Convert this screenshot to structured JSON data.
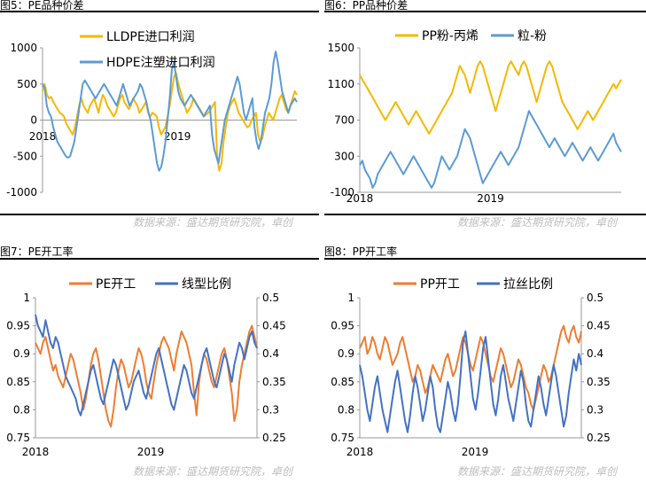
{
  "source_label": "数据来源：盛达期货研究院，卓创",
  "colors": {
    "gold": "#F5B800",
    "blue": "#5B9BD5",
    "orange": "#ED7D31",
    "navy": "#4472C4"
  },
  "chart_data": [
    {
      "id": "fig5",
      "type": "line",
      "title": "图5：PE品种价差",
      "x_ticks": [
        "2018",
        "2019"
      ],
      "ylim": [
        -1000,
        1000
      ],
      "y_ticks": [
        "1000",
        "500",
        "0",
        "-500",
        "-1000"
      ],
      "legend_position": "top",
      "series": [
        {
          "name": "LLDPE进口利润",
          "color": "#F5B800",
          "values": [
            400,
            500,
            350,
            300,
            320,
            250,
            200,
            150,
            100,
            80,
            50,
            -50,
            -100,
            -150,
            -200,
            -100,
            50,
            200,
            300,
            200,
            150,
            100,
            200,
            250,
            300,
            200,
            100,
            250,
            350,
            300,
            200,
            150,
            100,
            50,
            100,
            200,
            300,
            350,
            250,
            200,
            150,
            200,
            300,
            250,
            200,
            100,
            150,
            200,
            250,
            100,
            50,
            100,
            80,
            50,
            -100,
            -200,
            -150,
            -100,
            50,
            200,
            400,
            600,
            650,
            500,
            400,
            300,
            200,
            100,
            150,
            200,
            300,
            250,
            200,
            150,
            100,
            50,
            80,
            100,
            150,
            200,
            250,
            -500,
            -700,
            -600,
            -300,
            -100,
            100,
            200,
            250,
            300,
            200,
            100,
            50,
            0,
            -50,
            -100,
            -80,
            0,
            50,
            100,
            -200,
            -300,
            -250,
            -100,
            0,
            100,
            50,
            0,
            100,
            200,
            300,
            350,
            250,
            150,
            100,
            200,
            300,
            400,
            350
          ]
        },
        {
          "name": "HDPE注塑进口利润",
          "color": "#5B9BD5",
          "values": [
            500,
            450,
            200,
            100,
            50,
            -100,
            -200,
            -300,
            -350,
            -400,
            -450,
            -500,
            -520,
            -500,
            -400,
            -300,
            -100,
            100,
            300,
            500,
            550,
            500,
            450,
            400,
            350,
            300,
            350,
            400,
            450,
            500,
            450,
            400,
            350,
            300,
            250,
            200,
            300,
            400,
            500,
            400,
            300,
            200,
            250,
            300,
            350,
            400,
            500,
            450,
            350,
            250,
            100,
            0,
            -200,
            -400,
            -600,
            -700,
            -650,
            -500,
            -300,
            0,
            300,
            700,
            800,
            600,
            400,
            300,
            250,
            200,
            250,
            300,
            350,
            300,
            250,
            200,
            150,
            100,
            50,
            100,
            150,
            200,
            -200,
            -400,
            -500,
            -600,
            -400,
            -200,
            0,
            100,
            200,
            300,
            400,
            500,
            600,
            500,
            300,
            100,
            0,
            100,
            200,
            300,
            -100,
            -300,
            -400,
            -300,
            -100,
            100,
            200,
            300,
            500,
            800,
            950,
            800,
            600,
            400,
            300,
            200,
            100,
            200,
            250,
            300,
            250
          ]
        }
      ]
    },
    {
      "id": "fig6",
      "type": "line",
      "title": "图6：PP品种价差",
      "x_ticks": [
        "2018",
        "2019"
      ],
      "ylim": [
        -100,
        1500
      ],
      "y_ticks": [
        "1500",
        "1100",
        "700",
        "300",
        "-100"
      ],
      "legend_position": "top",
      "series": [
        {
          "name": "PP粉-丙烯",
          "color": "#F5B800",
          "values": [
            1200,
            1150,
            1100,
            1050,
            1000,
            950,
            900,
            850,
            800,
            750,
            700,
            750,
            800,
            850,
            900,
            850,
            800,
            750,
            700,
            650,
            700,
            750,
            800,
            750,
            700,
            650,
            600,
            550,
            600,
            650,
            700,
            750,
            800,
            850,
            900,
            950,
            1000,
            1100,
            1200,
            1300,
            1250,
            1200,
            1100,
            1000,
            1100,
            1200,
            1300,
            1350,
            1300,
            1200,
            1100,
            1000,
            900,
            800,
            900,
            1000,
            1100,
            1200,
            1300,
            1350,
            1300,
            1250,
            1200,
            1300,
            1350,
            1300,
            1200,
            1100,
            1000,
            900,
            1000,
            1100,
            1200,
            1300,
            1350,
            1300,
            1200,
            1100,
            1000,
            900,
            850,
            800,
            750,
            700,
            650,
            600,
            650,
            700,
            750,
            800,
            750,
            700,
            750,
            800,
            850,
            900,
            950,
            1000,
            1050,
            1100,
            1050,
            1100,
            1150
          ]
        },
        {
          "name": "粒-粉",
          "color": "#5B9BD5",
          "values": [
            200,
            250,
            150,
            100,
            50,
            -50,
            0,
            100,
            150,
            200,
            250,
            300,
            350,
            300,
            250,
            200,
            150,
            100,
            150,
            200,
            250,
            300,
            250,
            200,
            150,
            100,
            50,
            0,
            -50,
            0,
            100,
            200,
            300,
            250,
            200,
            150,
            200,
            250,
            300,
            400,
            500,
            600,
            550,
            500,
            400,
            300,
            200,
            100,
            0,
            50,
            100,
            150,
            200,
            250,
            300,
            350,
            300,
            250,
            200,
            250,
            300,
            350,
            400,
            500,
            600,
            700,
            800,
            750,
            700,
            650,
            600,
            550,
            500,
            450,
            400,
            450,
            500,
            450,
            400,
            350,
            300,
            350,
            400,
            450,
            400,
            350,
            300,
            250,
            300,
            350,
            400,
            350,
            300,
            250,
            300,
            350,
            400,
            450,
            500,
            550,
            450,
            400,
            350
          ]
        }
      ]
    },
    {
      "id": "fig7",
      "type": "line",
      "title": "图7：PE开工率",
      "x_ticks": [
        "2018",
        "2019"
      ],
      "ylim": [
        0.75,
        1.0
      ],
      "y_ticks": [
        "1",
        "0.95",
        "0.9",
        "0.85",
        "0.8",
        "0.75"
      ],
      "y2lim": [
        0.25,
        0.5
      ],
      "y2_ticks": [
        "0.5",
        "0.45",
        "0.4",
        "0.35",
        "0.3",
        "0.25"
      ],
      "legend_position": "top",
      "series": [
        {
          "name": "PE开工",
          "color": "#ED7D31",
          "axis": "left",
          "values": [
            0.92,
            0.91,
            0.9,
            0.92,
            0.93,
            0.91,
            0.89,
            0.87,
            0.88,
            0.86,
            0.85,
            0.84,
            0.86,
            0.88,
            0.9,
            0.89,
            0.87,
            0.85,
            0.83,
            0.8,
            0.82,
            0.85,
            0.88,
            0.9,
            0.91,
            0.89,
            0.86,
            0.83,
            0.8,
            0.78,
            0.77,
            0.8,
            0.84,
            0.87,
            0.89,
            0.88,
            0.86,
            0.84,
            0.85,
            0.87,
            0.89,
            0.91,
            0.9,
            0.88,
            0.85,
            0.83,
            0.82,
            0.85,
            0.88,
            0.9,
            0.92,
            0.93,
            0.92,
            0.91,
            0.89,
            0.87,
            0.9,
            0.92,
            0.94,
            0.93,
            0.92,
            0.9,
            0.88,
            0.83,
            0.79,
            0.85,
            0.88,
            0.9,
            0.89,
            0.87,
            0.85,
            0.84,
            0.86,
            0.88,
            0.9,
            0.91,
            0.89,
            0.86,
            0.83,
            0.78,
            0.8,
            0.85,
            0.88,
            0.9,
            0.92,
            0.94,
            0.95,
            0.93,
            0.91
          ]
        },
        {
          "name": "线型比例",
          "color": "#4472C4",
          "axis": "right",
          "values": [
            0.47,
            0.45,
            0.44,
            0.43,
            0.46,
            0.44,
            0.42,
            0.41,
            0.43,
            0.42,
            0.4,
            0.38,
            0.36,
            0.35,
            0.34,
            0.33,
            0.32,
            0.3,
            0.29,
            0.31,
            0.33,
            0.35,
            0.37,
            0.38,
            0.36,
            0.34,
            0.32,
            0.31,
            0.33,
            0.35,
            0.37,
            0.39,
            0.38,
            0.36,
            0.34,
            0.32,
            0.3,
            0.31,
            0.33,
            0.35,
            0.36,
            0.37,
            0.35,
            0.33,
            0.32,
            0.34,
            0.36,
            0.38,
            0.4,
            0.41,
            0.39,
            0.37,
            0.35,
            0.33,
            0.31,
            0.3,
            0.32,
            0.34,
            0.36,
            0.38,
            0.37,
            0.35,
            0.33,
            0.32,
            0.34,
            0.36,
            0.38,
            0.4,
            0.41,
            0.39,
            0.37,
            0.35,
            0.34,
            0.36,
            0.38,
            0.4,
            0.39,
            0.37,
            0.35,
            0.38,
            0.4,
            0.42,
            0.41,
            0.39,
            0.41,
            0.43,
            0.44,
            0.42,
            0.41
          ]
        }
      ]
    },
    {
      "id": "fig8",
      "type": "line",
      "title": "图8：PP开工率",
      "x_ticks": [
        "2018",
        "2019"
      ],
      "ylim": [
        0.75,
        1.0
      ],
      "y_ticks": [
        "1",
        "0.95",
        "0.9",
        "0.85",
        "0.8",
        "0.75"
      ],
      "y2lim": [
        0.25,
        0.5
      ],
      "y2_ticks": [
        "0.5",
        "0.45",
        "0.4",
        "0.35",
        "0.3",
        "0.25"
      ],
      "legend_position": "top",
      "series": [
        {
          "name": "PP开工",
          "color": "#ED7D31",
          "axis": "left",
          "values": [
            0.91,
            0.92,
            0.93,
            0.9,
            0.91,
            0.93,
            0.92,
            0.9,
            0.89,
            0.91,
            0.93,
            0.92,
            0.9,
            0.88,
            0.89,
            0.9,
            0.92,
            0.93,
            0.91,
            0.89,
            0.87,
            0.85,
            0.86,
            0.88,
            0.87,
            0.85,
            0.83,
            0.84,
            0.86,
            0.88,
            0.87,
            0.86,
            0.85,
            0.87,
            0.89,
            0.9,
            0.88,
            0.86,
            0.87,
            0.89,
            0.91,
            0.93,
            0.92,
            0.9,
            0.88,
            0.87,
            0.89,
            0.91,
            0.93,
            0.92,
            0.9,
            0.88,
            0.86,
            0.85,
            0.87,
            0.89,
            0.91,
            0.9,
            0.88,
            0.86,
            0.84,
            0.85,
            0.87,
            0.89,
            0.88,
            0.86,
            0.84,
            0.83,
            0.81,
            0.8,
            0.82,
            0.84,
            0.86,
            0.88,
            0.87,
            0.85,
            0.86,
            0.88,
            0.9,
            0.92,
            0.94,
            0.95,
            0.93,
            0.92,
            0.94,
            0.95,
            0.93,
            0.92,
            0.94
          ]
        },
        {
          "name": "拉丝比例",
          "color": "#4472C4",
          "axis": "right",
          "values": [
            0.38,
            0.36,
            0.33,
            0.3,
            0.28,
            0.31,
            0.34,
            0.36,
            0.33,
            0.3,
            0.28,
            0.26,
            0.29,
            0.32,
            0.35,
            0.37,
            0.34,
            0.31,
            0.28,
            0.26,
            0.29,
            0.33,
            0.36,
            0.34,
            0.31,
            0.28,
            0.3,
            0.33,
            0.36,
            0.34,
            0.3,
            0.27,
            0.26,
            0.29,
            0.32,
            0.35,
            0.33,
            0.3,
            0.28,
            0.31,
            0.36,
            0.42,
            0.44,
            0.4,
            0.36,
            0.32,
            0.3,
            0.33,
            0.37,
            0.41,
            0.43,
            0.39,
            0.35,
            0.31,
            0.29,
            0.32,
            0.36,
            0.38,
            0.35,
            0.32,
            0.3,
            0.28,
            0.31,
            0.34,
            0.37,
            0.35,
            0.31,
            0.28,
            0.27,
            0.3,
            0.33,
            0.36,
            0.34,
            0.31,
            0.29,
            0.32,
            0.35,
            0.38,
            0.36,
            0.33,
            0.3,
            0.27,
            0.29,
            0.33,
            0.36,
            0.39,
            0.37,
            0.4,
            0.38
          ]
        }
      ]
    }
  ]
}
